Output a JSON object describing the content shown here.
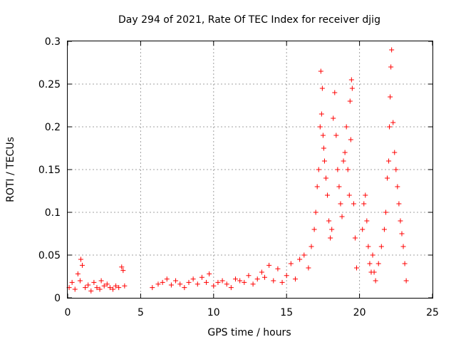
{
  "chart_data": {
    "type": "scatter",
    "title": "Day 294 of 2021, Rate Of TEC Index for receiver djig",
    "xlabel": "GPS time / hours",
    "ylabel": "ROTI / TECUs",
    "xlim": [
      0,
      25
    ],
    "ylim": [
      0,
      0.3
    ],
    "xticks": [
      "0",
      "5",
      "10",
      "15",
      "20",
      "25"
    ],
    "yticks": [
      "0",
      "0.05",
      "0.1",
      "0.15",
      "0.2",
      "0.25",
      "0.3"
    ],
    "grid": true,
    "marker": "plus",
    "color": "#ff0000",
    "series": [
      {
        "x": [
          0.1,
          0.3,
          0.5,
          0.7,
          0.85,
          0.9,
          1.0,
          1.2,
          1.4,
          1.6,
          1.8,
          2.0,
          2.2,
          2.3,
          2.5,
          2.7,
          2.9,
          3.1,
          3.3,
          3.5,
          3.7,
          3.8,
          3.9,
          5.8,
          6.2,
          6.5,
          6.8,
          7.1,
          7.4,
          7.7,
          8.0,
          8.3,
          8.6,
          8.9,
          9.2,
          9.5,
          9.7,
          10.0,
          10.3,
          10.6,
          10.9,
          11.2,
          11.5,
          11.8,
          12.1,
          12.4,
          12.7,
          13.0,
          13.3,
          13.5,
          13.8,
          14.1,
          14.4,
          14.7,
          15.0,
          15.3,
          15.6,
          15.9,
          16.2,
          16.5,
          16.7,
          16.9,
          17.0,
          17.1,
          17.2,
          17.3,
          17.35,
          17.4,
          17.45,
          17.5,
          17.55,
          17.6,
          17.7,
          17.8,
          17.9,
          18.0,
          18.1,
          18.2,
          18.3,
          18.4,
          18.5,
          18.6,
          18.7,
          18.8,
          18.9,
          19.0,
          19.1,
          19.2,
          19.3,
          19.35,
          19.4,
          19.45,
          19.5,
          19.6,
          19.7,
          19.8,
          20.2,
          20.3,
          20.4,
          20.5,
          20.6,
          20.7,
          20.8,
          20.9,
          21.0,
          21.1,
          21.3,
          21.5,
          21.7,
          21.8,
          21.9,
          22.0,
          22.05,
          22.1,
          22.15,
          22.2,
          22.3,
          22.4,
          22.5,
          22.6,
          22.7,
          22.8,
          22.9,
          23.0,
          23.1,
          23.2
        ],
        "y": [
          0.012,
          0.018,
          0.01,
          0.028,
          0.02,
          0.045,
          0.038,
          0.012,
          0.015,
          0.008,
          0.018,
          0.012,
          0.01,
          0.02,
          0.014,
          0.016,
          0.012,
          0.01,
          0.014,
          0.012,
          0.036,
          0.032,
          0.014,
          0.012,
          0.016,
          0.018,
          0.022,
          0.015,
          0.02,
          0.016,
          0.012,
          0.018,
          0.022,
          0.016,
          0.024,
          0.018,
          0.028,
          0.014,
          0.018,
          0.02,
          0.016,
          0.012,
          0.022,
          0.02,
          0.018,
          0.026,
          0.016,
          0.022,
          0.03,
          0.024,
          0.038,
          0.02,
          0.034,
          0.018,
          0.026,
          0.04,
          0.022,
          0.045,
          0.05,
          0.035,
          0.06,
          0.08,
          0.1,
          0.13,
          0.15,
          0.2,
          0.265,
          0.215,
          0.245,
          0.19,
          0.175,
          0.16,
          0.14,
          0.12,
          0.09,
          0.07,
          0.08,
          0.21,
          0.24,
          0.19,
          0.15,
          0.13,
          0.11,
          0.095,
          0.16,
          0.17,
          0.2,
          0.15,
          0.12,
          0.23,
          0.185,
          0.255,
          0.245,
          0.11,
          0.07,
          0.035,
          0.08,
          0.11,
          0.12,
          0.09,
          0.06,
          0.04,
          0.03,
          0.05,
          0.03,
          0.02,
          0.04,
          0.06,
          0.08,
          0.1,
          0.14,
          0.16,
          0.2,
          0.235,
          0.27,
          0.29,
          0.205,
          0.17,
          0.15,
          0.13,
          0.11,
          0.09,
          0.075,
          0.06,
          0.04,
          0.02
        ]
      }
    ]
  }
}
